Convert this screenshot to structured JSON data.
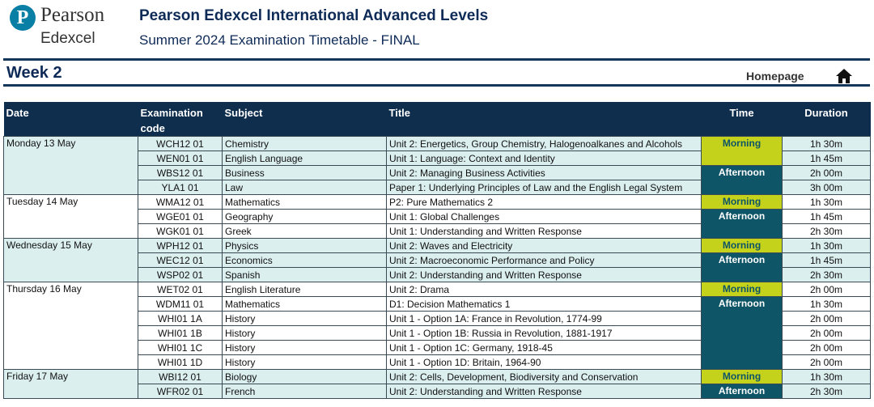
{
  "header": {
    "logo_brand": "Pearson",
    "logo_sub": "Edexcel",
    "title": "Pearson Edexcel International Advanced Levels",
    "subtitle": "Summer 2024 Examination Timetable - FINAL"
  },
  "week": "Week 2",
  "homepage": "Homepage",
  "table": {
    "columns": [
      "Date",
      "Examination code",
      "Subject",
      "Title",
      "Time",
      "Duration"
    ],
    "days": [
      {
        "date": "Monday 13 May",
        "sessions": [
          {
            "time": "Morning",
            "exams": [
              {
                "code": "WCH12 01",
                "subject": "Chemistry",
                "title": "Unit 2: Energetics, Group Chemistry, Halogenoalkanes and Alcohols",
                "duration": "1h 30m"
              },
              {
                "code": "WEN01 01",
                "subject": "English Language",
                "title": "Unit 1: Language: Context and Identity",
                "duration": "1h 45m"
              }
            ]
          },
          {
            "time": "Afternoon",
            "exams": [
              {
                "code": "WBS12 01",
                "subject": "Business",
                "title": "Unit 2: Managing Business Activities",
                "duration": "2h 00m"
              },
              {
                "code": "YLA1 01",
                "subject": "Law",
                "title": "Paper 1: Underlying Principles of Law and the English Legal System",
                "duration": "3h 00m"
              }
            ]
          }
        ]
      },
      {
        "date": "Tuesday 14 May",
        "sessions": [
          {
            "time": "Morning",
            "exams": [
              {
                "code": "WMA12 01",
                "subject": "Mathematics",
                "title": "P2: Pure Mathematics 2",
                "duration": "1h 30m"
              }
            ]
          },
          {
            "time": "Afternoon",
            "exams": [
              {
                "code": "WGE01 01",
                "subject": "Geography",
                "title": "Unit 1: Global Challenges",
                "duration": "1h 45m"
              },
              {
                "code": "WGK01 01",
                "subject": "Greek",
                "title": "Unit 1: Understanding and Written Response",
                "duration": "2h 30m"
              }
            ]
          }
        ]
      },
      {
        "date": "Wednesday 15 May",
        "sessions": [
          {
            "time": "Morning",
            "exams": [
              {
                "code": "WPH12 01",
                "subject": "Physics",
                "title": "Unit 2: Waves and Electricity",
                "duration": "1h 30m"
              }
            ]
          },
          {
            "time": "Afternoon",
            "exams": [
              {
                "code": "WEC12 01",
                "subject": "Economics",
                "title": "Unit 2: Macroeconomic Performance and Policy",
                "duration": "1h 45m"
              },
              {
                "code": "WSP02 01",
                "subject": "Spanish",
                "title": "Unit 2: Understanding and Written Response",
                "duration": "2h 30m"
              }
            ]
          }
        ]
      },
      {
        "date": "Thursday 16 May",
        "sessions": [
          {
            "time": "Morning",
            "exams": [
              {
                "code": "WET02 01",
                "subject": "English Literature",
                "title": "Unit 2: Drama",
                "duration": "2h 00m"
              }
            ]
          },
          {
            "time": "Afternoon",
            "exams": [
              {
                "code": "WDM11 01",
                "subject": "Mathematics",
                "title": "D1: Decision Mathematics 1",
                "duration": "1h 30m"
              },
              {
                "code": "WHI01 1A",
                "subject": "History",
                "title": "Unit 1 - Option 1A: France in Revolution, 1774-99",
                "duration": "2h 00m"
              },
              {
                "code": "WHI01 1B",
                "subject": "History",
                "title": "Unit 1 - Option 1B: Russia in Revolution, 1881-1917",
                "duration": "2h 00m"
              },
              {
                "code": "WHI01 1C",
                "subject": "History",
                "title": "Unit 1 - Option 1C: Germany, 1918-45",
                "duration": "2h 00m"
              },
              {
                "code": "WHI01 1D",
                "subject": "History",
                "title": "Unit 1 - Option 1D: Britain, 1964-90",
                "duration": "2h 00m"
              }
            ]
          }
        ]
      },
      {
        "date": "Friday 17 May",
        "sessions": [
          {
            "time": "Morning",
            "exams": [
              {
                "code": "WBI12 01",
                "subject": "Biology",
                "title": "Unit 2: Cells, Development, Biodiversity and Conservation",
                "duration": "1h 30m"
              }
            ]
          },
          {
            "time": "Afternoon",
            "exams": [
              {
                "code": "WFR02 01",
                "subject": "French",
                "title": "Unit 2: Understanding and Written Response",
                "duration": "2h 30m"
              }
            ]
          }
        ]
      }
    ]
  }
}
